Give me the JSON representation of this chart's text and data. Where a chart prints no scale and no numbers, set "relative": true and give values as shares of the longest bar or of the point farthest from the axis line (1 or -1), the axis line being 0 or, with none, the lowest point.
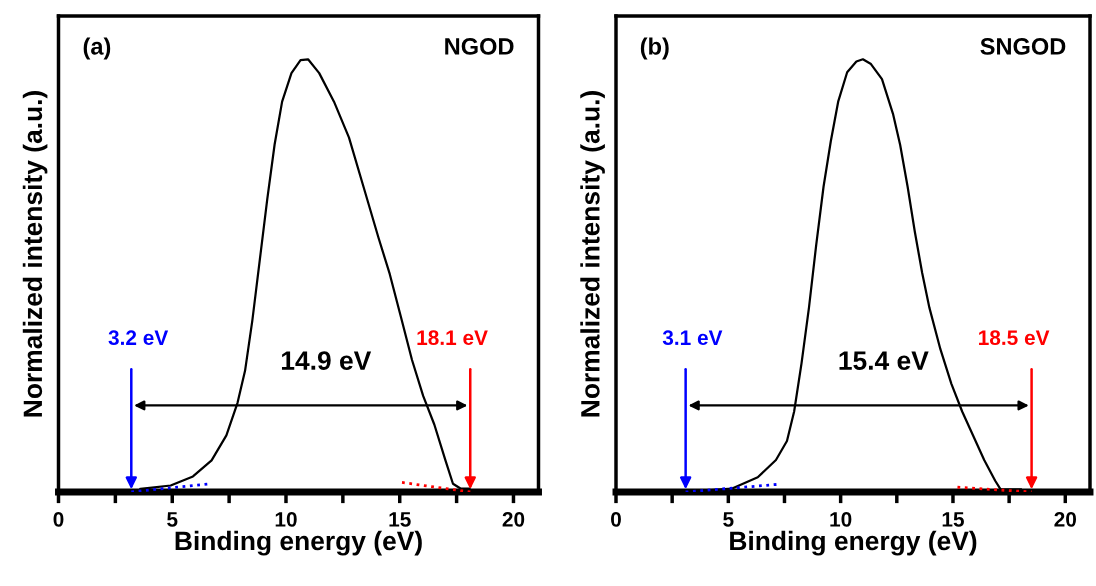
{
  "chart_data": [
    {
      "type": "line",
      "relative": true,
      "xlabel": "Binding energy (eV)",
      "ylabel": "Normalized intensity (a.u.)",
      "tick_labels": "x",
      "grid": false,
      "legend": false,
      "xlim": [
        0,
        21.1
      ],
      "xticks": [
        0,
        {
          "value": 2.5,
          "label": null
        },
        5,
        {
          "value": 7.5,
          "label": null
        },
        10,
        {
          "value": 12.5,
          "label": null
        },
        15,
        {
          "value": 17.5,
          "label": null
        },
        20
      ],
      "series": [
        {
          "color": "#000000",
          "line_style": "solid",
          "x": [
            3.6,
            4.93,
            5.91,
            6.73,
            7.38,
            7.87,
            8.2,
            8.52,
            8.85,
            9.18,
            9.5,
            9.83,
            10.24,
            10.64,
            10.97,
            11.46,
            12.11,
            12.77,
            13.42,
            14.07,
            14.56,
            15.05,
            15.54,
            16.03,
            16.52,
            17.01,
            17.34,
            17.67,
            18.07
          ],
          "values": [
            0.007,
            0.015,
            0.036,
            0.073,
            0.131,
            0.206,
            0.28,
            0.396,
            0.537,
            0.678,
            0.803,
            0.902,
            0.968,
            0.998,
            1.0,
            0.968,
            0.902,
            0.819,
            0.703,
            0.587,
            0.504,
            0.405,
            0.305,
            0.222,
            0.156,
            0.073,
            0.019,
            0.008,
            0.008
          ]
        },
        {
          "color": "#0000ff",
          "line_style": "dotted",
          "x": [
            3.2,
            6.7
          ],
          "values": [
            0,
            0.019
          ]
        },
        {
          "color": "#ff0000",
          "line_style": "dotted",
          "x": [
            15.1,
            18.1
          ],
          "values": [
            0.022,
            0
          ]
        }
      ],
      "annotations": [
        "(a)",
        "NGOD",
        {
          "text": "3.2 eV",
          "x": 3.2,
          "y": 0
        },
        {
          "text": "18.1 eV",
          "x": 18.1,
          "y": 0
        },
        "14.9 eV"
      ]
    },
    {
      "type": "line",
      "relative": true,
      "xlabel": "Binding energy (eV)",
      "ylabel": "Normalized intensity (a.u.)",
      "tick_labels": "x",
      "grid": false,
      "legend": false,
      "xlim": [
        0,
        21.1
      ],
      "xticks": [
        0,
        {
          "value": 2.5,
          "label": null
        },
        5,
        {
          "value": 7.5,
          "label": null
        },
        10,
        {
          "value": 12.5,
          "label": null
        },
        15,
        {
          "value": 17.5,
          "label": null
        },
        20
      ],
      "series": [
        {
          "color": "#000000",
          "line_style": "solid",
          "x": [
            3.46,
            5.17,
            6.31,
            7.12,
            7.61,
            7.93,
            8.26,
            8.59,
            8.91,
            9.24,
            9.56,
            9.89,
            10.29,
            10.7,
            10.99,
            11.35,
            11.84,
            12.33,
            12.65,
            12.98,
            13.3,
            13.63,
            13.95,
            14.44,
            14.93,
            15.41,
            15.9,
            16.39,
            16.88,
            17.12,
            18.02
          ],
          "values": [
            0.002,
            0.008,
            0.034,
            0.074,
            0.118,
            0.186,
            0.298,
            0.426,
            0.57,
            0.706,
            0.81,
            0.902,
            0.97,
            0.995,
            1.0,
            0.989,
            0.954,
            0.874,
            0.802,
            0.706,
            0.602,
            0.506,
            0.426,
            0.33,
            0.25,
            0.186,
            0.13,
            0.074,
            0.026,
            0.006,
            0.006
          ]
        },
        {
          "color": "#0000ff",
          "line_style": "dotted",
          "x": [
            3.1,
            7.3
          ],
          "values": [
            0,
            0.018
          ]
        },
        {
          "color": "#ff0000",
          "line_style": "dotted",
          "x": [
            15.2,
            18.5
          ],
          "values": [
            0.011,
            0
          ]
        }
      ],
      "annotations": [
        "(b)",
        "SNGOD",
        {
          "text": "3.1 eV",
          "x": 3.1,
          "y": 0
        },
        {
          "text": "18.5 eV",
          "x": 18.5,
          "y": 0
        },
        "15.4 eV"
      ]
    }
  ]
}
